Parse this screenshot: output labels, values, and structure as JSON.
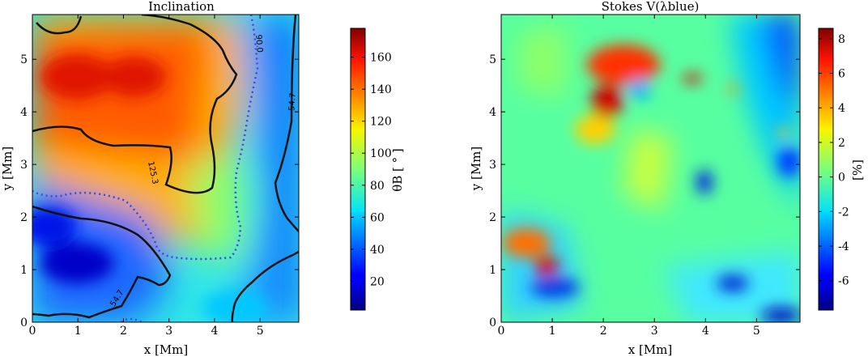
{
  "chart_data": [
    {
      "type": "heatmap",
      "title": "Inclination",
      "xlabel": "x [Mm]",
      "ylabel": "y [Mm]",
      "xlim": [
        0,
        5.85
      ],
      "ylim": [
        0,
        5.85
      ],
      "xticks": [
        "0",
        "1",
        "2",
        "3",
        "4",
        "5"
      ],
      "yticks": [
        "0",
        "1",
        "2",
        "3",
        "4",
        "5"
      ],
      "colorbar": {
        "label": "θB [ ° ]",
        "range": [
          2,
          178
        ],
        "ticks": [
          "20",
          "40",
          "60",
          "80",
          "100",
          "120",
          "140",
          "160"
        ],
        "colormap": "jet"
      },
      "contours": [
        {
          "level": "54.7",
          "style": "solid"
        },
        {
          "level": "90.0",
          "style": "dotted"
        },
        {
          "level": "125.3",
          "style": "solid"
        }
      ],
      "features": [
        {
          "description": "high inclination region",
          "x": 1.5,
          "y": 4.8,
          "value": 172
        },
        {
          "description": "low inclination region",
          "x": 1.2,
          "y": 1.1,
          "value": 10
        }
      ]
    },
    {
      "type": "heatmap",
      "title": "Stokes V(λblue)",
      "xlabel": "x [Mm]",
      "ylabel": "y [Mm]",
      "xlim": [
        0,
        5.85
      ],
      "ylim": [
        0,
        5.85
      ],
      "xticks": [
        "0",
        "1",
        "2",
        "3",
        "4",
        "5"
      ],
      "yticks": [
        "0",
        "1",
        "2",
        "3",
        "4",
        "5"
      ],
      "colorbar": {
        "label": "[%]",
        "range": [
          -7.7,
          8.6
        ],
        "ticks": [
          "8",
          "6",
          "4",
          "2",
          "0",
          "-2",
          "-4",
          "-6"
        ],
        "colormap": "jet"
      }
    }
  ]
}
